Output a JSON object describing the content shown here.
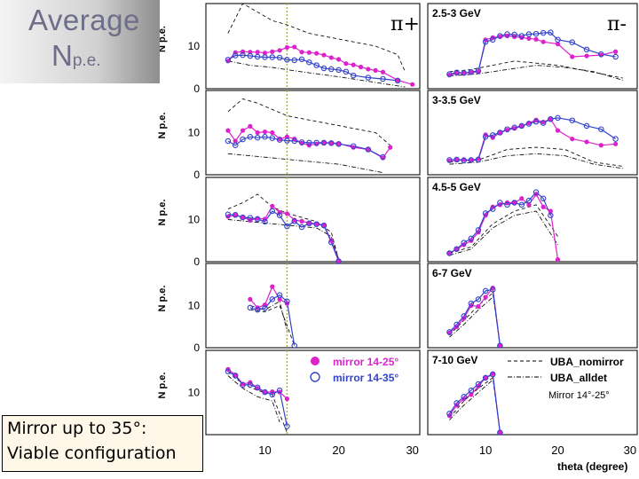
{
  "title": {
    "line1": "Average",
    "line2_main": "N",
    "line2_sub": "p.e."
  },
  "note": {
    "line1": "Mirror up to 35°:",
    "line2": "Viable configuration"
  },
  "chart_data": {
    "type": "line",
    "columns": [
      "π+",
      "π-"
    ],
    "rows": [
      "2.5-3 GeV",
      "3-3.5 GeV",
      "4.5-5 GeV",
      "6-7 GeV",
      "7-10 GeV"
    ],
    "ylabel": "N p.e.",
    "xlabel": "theta  (degree)",
    "xlim": [
      2,
      31
    ],
    "ylim": [
      0,
      20
    ],
    "xticks": [
      10,
      20,
      30
    ],
    "yticks": [
      0,
      10
    ],
    "legend": {
      "solid_label": "mirror 14-25°",
      "open_label": "mirror 14-35°",
      "dashed_label": "UBA_nomirror",
      "dashdot_label": "UBA_alldet",
      "sub_label": "Mirror 14°-25°"
    },
    "colors": {
      "solid": "#dd22cc",
      "open": "#3344cc",
      "dashed": "#111111",
      "axis": "#222222",
      "marker_line": "#bbbb00"
    },
    "panels": [
      {
        "row": 0,
        "col": 0,
        "label": "π+",
        "marker_x": 13,
        "x_solid": [
          5,
          6,
          7,
          8,
          9,
          10,
          11,
          12,
          13,
          14,
          15,
          16,
          17,
          18,
          19,
          20,
          21,
          22,
          23,
          24,
          25,
          26,
          28,
          30
        ],
        "y_solid": [
          6.5,
          8.5,
          8.7,
          8.6,
          8.6,
          8.4,
          8.7,
          9.0,
          9.7,
          9.8,
          8.6,
          8.5,
          8.3,
          7.9,
          7.3,
          6.9,
          5.9,
          5.6,
          5.1,
          4.6,
          4.3,
          3.9,
          2.0,
          1.0
        ],
        "x_open": [
          5,
          6,
          7,
          8,
          9,
          10,
          11,
          12,
          13,
          14,
          15,
          16,
          17,
          18,
          19,
          20,
          21,
          22,
          24,
          26,
          28
        ],
        "y_open": [
          6.8,
          7.8,
          7.9,
          7.7,
          7.5,
          7.4,
          7.4,
          7.3,
          6.8,
          6.7,
          6.9,
          6.2,
          5.5,
          4.8,
          4.6,
          4.4,
          4.0,
          3.1,
          2.6,
          2.3,
          1.9
        ],
        "x_dash": [
          5,
          7,
          9,
          11,
          13,
          16,
          19,
          22,
          25,
          28,
          29
        ],
        "y_dash": [
          13,
          20,
          18,
          16,
          15,
          13,
          12,
          11,
          10,
          8,
          4
        ],
        "x_dash2": [
          5,
          8,
          11,
          14,
          17,
          20,
          23,
          26,
          29
        ],
        "y_dash2": [
          6.5,
          5.5,
          5.0,
          4.2,
          3.5,
          2.8,
          2.0,
          1.2,
          0.4
        ]
      },
      {
        "row": 0,
        "col": 1,
        "label": "π-",
        "marker_x": 0,
        "x_solid": [
          5,
          6,
          7,
          8,
          9,
          10,
          11,
          12,
          13,
          14,
          15,
          16,
          17,
          18,
          20,
          22,
          24,
          26,
          28
        ],
        "y_solid": [
          3.2,
          3.6,
          3.7,
          3.8,
          4.0,
          11.5,
          12.0,
          12.2,
          12.4,
          12.2,
          12.0,
          11.8,
          11.6,
          11.0,
          10.5,
          7.5,
          7.7,
          7.9,
          8.7
        ],
        "x_open": [
          5,
          6,
          7,
          8,
          9,
          10,
          11,
          12,
          13,
          14,
          15,
          16,
          17,
          18,
          19,
          20,
          22,
          24,
          26,
          28
        ],
        "y_open": [
          3.4,
          3.8,
          3.7,
          3.9,
          4.2,
          11.0,
          11.5,
          12.4,
          12.8,
          12.7,
          12.4,
          12.8,
          12.9,
          13.1,
          13.2,
          11.5,
          10.9,
          9.2,
          8.1,
          7.5
        ],
        "x_dash": [
          5,
          8,
          11,
          14,
          17,
          20,
          23,
          26,
          29
        ],
        "y_dash": [
          4.0,
          4.5,
          5.5,
          6.5,
          6.0,
          5.5,
          4.5,
          3.5,
          2.5
        ],
        "x_dash2": [
          5,
          9,
          13,
          17,
          21,
          25,
          29
        ],
        "y_dash2": [
          3.0,
          3.5,
          4.5,
          5.5,
          5.0,
          4.0,
          2.0
        ]
      },
      {
        "row": 1,
        "col": 0,
        "label": "",
        "marker_x": 13,
        "x_solid": [
          5,
          6,
          7,
          8,
          9,
          10,
          11,
          12,
          13,
          14,
          15,
          16,
          17,
          18,
          19,
          20,
          22,
          24,
          26,
          27
        ],
        "y_solid": [
          10.5,
          8.0,
          10.5,
          11.5,
          10.0,
          10.2,
          10.0,
          8.5,
          9.0,
          8.5,
          7.5,
          7.0,
          7.3,
          7.6,
          7.6,
          7.4,
          6.5,
          6.0,
          4.0,
          6.5
        ],
        "x_open": [
          5,
          6,
          7,
          8,
          9,
          10,
          11,
          12,
          13,
          14,
          15,
          16,
          17,
          18,
          19,
          20,
          22,
          24,
          26
        ],
        "y_open": [
          8.0,
          7.0,
          8.4,
          9.0,
          8.8,
          9.0,
          8.7,
          8.3,
          8.1,
          8.0,
          7.7,
          7.6,
          7.6,
          7.6,
          7.5,
          7.3,
          6.8,
          6.0,
          4.2
        ],
        "x_dash": [
          5,
          7,
          9,
          11,
          13,
          16,
          19,
          22,
          25,
          27
        ],
        "y_dash": [
          15,
          18,
          17,
          15.5,
          14,
          13,
          12,
          11,
          10,
          7
        ],
        "x_dash2": [
          5,
          8,
          11,
          14,
          17,
          20,
          23,
          26
        ],
        "y_dash2": [
          5.0,
          4.5,
          4.0,
          3.5,
          3.0,
          2.5,
          1.5,
          0.5
        ]
      },
      {
        "row": 1,
        "col": 1,
        "label": "",
        "marker_x": 0,
        "x_solid": [
          5,
          6,
          7,
          8,
          9,
          10,
          11,
          12,
          13,
          14,
          15,
          16,
          17,
          18,
          19,
          20,
          22,
          24,
          26,
          28
        ],
        "y_solid": [
          3.3,
          3.5,
          3.6,
          3.4,
          3.8,
          9.5,
          8.8,
          10.0,
          10.6,
          11.0,
          11.5,
          12.3,
          13.0,
          12.5,
          13.2,
          10.5,
          8.5,
          7.8,
          7.0,
          7.3
        ],
        "x_open": [
          5,
          6,
          7,
          8,
          9,
          10,
          11,
          12,
          13,
          14,
          15,
          16,
          17,
          18,
          19,
          20,
          22,
          24,
          26,
          28
        ],
        "y_open": [
          3.5,
          3.6,
          3.4,
          3.5,
          3.6,
          9.0,
          9.4,
          10.0,
          10.8,
          11.2,
          11.6,
          12.1,
          12.6,
          12.3,
          13.2,
          13.5,
          12.9,
          11.6,
          10.8,
          8.5
        ],
        "x_dash": [
          5,
          9,
          13,
          17,
          21,
          25,
          29
        ],
        "y_dash": [
          3.0,
          3.5,
          6.0,
          6.5,
          6.0,
          3.0,
          2.0
        ],
        "x_dash2": [
          5,
          9,
          13,
          17,
          21,
          25,
          29
        ],
        "y_dash2": [
          2.5,
          3.0,
          4.5,
          5.0,
          4.5,
          2.5,
          1.5
        ]
      },
      {
        "row": 2,
        "col": 0,
        "label": "",
        "marker_x": 13,
        "x_solid": [
          5,
          6,
          7,
          8,
          9,
          10,
          11,
          12,
          13,
          14,
          15,
          16,
          17,
          18,
          19,
          20
        ],
        "y_solid": [
          10.7,
          11.0,
          10.6,
          9.8,
          10.3,
          10.1,
          13.2,
          11.7,
          11.4,
          9.9,
          9.6,
          9.2,
          9.0,
          8.7,
          5.0,
          0.2
        ],
        "x_open": [
          5,
          6,
          7,
          8,
          9,
          10,
          11,
          12,
          13,
          14,
          15,
          16,
          17,
          18,
          19,
          20
        ],
        "y_open": [
          11.2,
          11.1,
          10.5,
          10.4,
          10.1,
          9.5,
          12.0,
          11.0,
          8.4,
          9.6,
          8.2,
          9.1,
          8.9,
          8.6,
          4.6,
          0.1
        ],
        "x_dash": [
          5,
          7,
          9,
          11,
          13,
          15,
          17,
          19,
          20
        ],
        "y_dash": [
          12.5,
          14.0,
          16.0,
          13.0,
          11.5,
          10.5,
          9.5,
          7.0,
          0.5
        ],
        "x_dash2": [
          5,
          8,
          11,
          14,
          17,
          19,
          20
        ],
        "y_dash2": [
          10.0,
          9.5,
          9.0,
          8.5,
          8.0,
          6.0,
          0.5
        ]
      },
      {
        "row": 2,
        "col": 1,
        "label": "",
        "marker_x": 0,
        "x_solid": [
          5,
          6,
          7,
          8,
          9,
          10,
          11,
          12,
          13,
          14,
          15,
          16,
          17,
          18,
          19,
          20
        ],
        "y_solid": [
          2.0,
          3.0,
          4.0,
          5.0,
          7.0,
          11.0,
          13.0,
          13.5,
          14.0,
          14.0,
          15.0,
          13.5,
          16.0,
          13.0,
          12.0,
          0.5
        ],
        "x_open": [
          5,
          6,
          7,
          8,
          9,
          10,
          11,
          12,
          13,
          14,
          15,
          16,
          17,
          18,
          19
        ],
        "y_open": [
          2.0,
          3.0,
          4.5,
          5.5,
          7.5,
          11.5,
          12.5,
          14.0,
          13.5,
          14.0,
          13.5,
          14.5,
          16.5,
          15.0,
          11.0
        ],
        "x_dash": [
          5,
          8,
          11,
          14,
          17,
          20
        ],
        "y_dash": [
          2.0,
          3.5,
          9.0,
          12.0,
          13.5,
          6.0
        ],
        "x_dash2": [
          5,
          8,
          11,
          14,
          17,
          20
        ],
        "y_dash2": [
          1.5,
          3.0,
          8.0,
          11.0,
          12.0,
          4.0
        ]
      },
      {
        "row": 3,
        "col": 0,
        "label": "",
        "marker_x": 13,
        "x_solid": [
          8,
          9,
          10,
          11,
          12,
          13
        ],
        "y_solid": [
          11.5,
          9.5,
          10.2,
          14.5,
          11.5,
          10.5
        ],
        "x_open": [
          8,
          9,
          10,
          11,
          12,
          13,
          14
        ],
        "y_open": [
          9.5,
          9.0,
          9.4,
          11.5,
          12.5,
          11.0,
          0.5
        ],
        "x_dash": [
          8,
          10,
          12,
          14
        ],
        "y_dash": [
          9.0,
          8.5,
          10.0,
          0.5
        ],
        "x_dash2": [
          8,
          10,
          12,
          13
        ],
        "y_dash2": [
          10.0,
          9.0,
          11.0,
          4.0
        ]
      },
      {
        "row": 3,
        "col": 1,
        "label": "",
        "marker_x": 0,
        "x_solid": [
          5,
          6,
          7,
          8,
          9,
          10,
          11,
          12
        ],
        "y_solid": [
          3.5,
          5.0,
          7.0,
          10.0,
          9.8,
          12.0,
          14.2,
          0.5
        ],
        "x_open": [
          5,
          6,
          7,
          8,
          9,
          10,
          11,
          12
        ],
        "y_open": [
          3.7,
          5.5,
          7.5,
          10.5,
          11.5,
          13.5,
          13.8,
          0.5
        ],
        "x_dash": [
          5,
          7,
          9,
          11,
          12
        ],
        "y_dash": [
          3.0,
          6.5,
          10.0,
          13.0,
          0.5
        ],
        "x_dash2": [
          5,
          7,
          9,
          11
        ],
        "y_dash2": [
          2.5,
          5.5,
          9.0,
          12.0
        ]
      },
      {
        "row": 4,
        "col": 0,
        "label": "",
        "marker_x": 13,
        "x_solid": [
          5,
          6,
          7,
          8,
          9,
          10,
          11,
          12,
          13
        ],
        "y_solid": [
          15.5,
          14.2,
          12.0,
          12.4,
          11.0,
          10.0,
          10.2,
          10.1,
          8.5
        ],
        "x_open": [
          5,
          6,
          7,
          8,
          9,
          10,
          11,
          12,
          13
        ],
        "y_open": [
          15.0,
          14.0,
          11.8,
          11.8,
          11.2,
          10.1,
          9.5,
          10.5,
          2.0
        ],
        "x_dash": [
          5,
          7,
          9,
          11,
          13
        ],
        "y_dash": [
          15.0,
          12.0,
          10.5,
          9.5,
          0.5
        ],
        "x_dash2": [
          5,
          7,
          9,
          11,
          12
        ],
        "y_dash2": [
          14.0,
          11.0,
          9.0,
          8.0,
          3.0
        ]
      },
      {
        "row": 4,
        "col": 1,
        "label": "",
        "marker_x": 0,
        "x_solid": [
          5,
          6,
          7,
          8,
          9,
          10,
          11,
          12
        ],
        "y_solid": [
          4.5,
          7.0,
          8.5,
          9.5,
          11.5,
          13.5,
          14.5,
          0.5
        ],
        "x_open": [
          5,
          6,
          7,
          8,
          9,
          10,
          11,
          12
        ],
        "y_open": [
          5.0,
          7.5,
          9.0,
          10.5,
          12.0,
          13.5,
          14.3,
          0.5
        ],
        "x_dash": [
          5,
          7,
          9,
          11,
          12
        ],
        "y_dash": [
          4.0,
          8.0,
          11.0,
          13.5,
          0.5
        ],
        "x_dash2": [
          5,
          7,
          9,
          11
        ],
        "y_dash2": [
          3.5,
          7.0,
          10.0,
          13.0
        ]
      }
    ]
  }
}
